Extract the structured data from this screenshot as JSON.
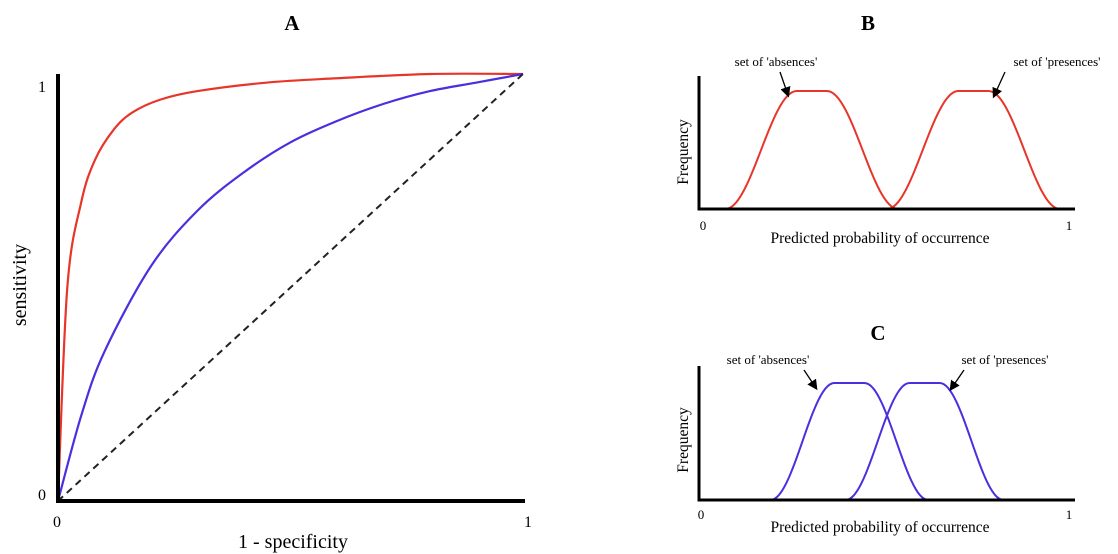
{
  "colors": {
    "red": "#e8352a",
    "blue": "#4a2fe0",
    "axis": "#000000",
    "diagonal": "#222222"
  },
  "chart_data": [
    {
      "panel": "A",
      "type": "line",
      "xlabel": "1 - specificity",
      "ylabel": "sensitivity",
      "xlim": [
        0,
        1
      ],
      "ylim": [
        0,
        1
      ],
      "x_ticks": [
        "0",
        "1"
      ],
      "y_ticks": [
        "0",
        "1"
      ],
      "series": [
        {
          "color": "red",
          "style": "solid",
          "x": [
            0,
            0.02,
            0.05,
            0.08,
            0.12,
            0.16,
            0.22,
            0.3,
            0.45,
            0.6,
            0.8,
            1.0
          ],
          "y": [
            0,
            0.5,
            0.7,
            0.8,
            0.87,
            0.91,
            0.94,
            0.96,
            0.98,
            0.99,
            1.0,
            1.0
          ]
        },
        {
          "color": "blue",
          "style": "solid",
          "x": [
            0,
            0.05,
            0.1,
            0.2,
            0.3,
            0.4,
            0.5,
            0.6,
            0.7,
            0.8,
            0.9,
            1.0
          ],
          "y": [
            0,
            0.2,
            0.35,
            0.55,
            0.68,
            0.77,
            0.84,
            0.89,
            0.93,
            0.96,
            0.98,
            1.0
          ]
        },
        {
          "color": "diagonal",
          "style": "dashed",
          "x": [
            0,
            1
          ],
          "y": [
            0,
            1
          ]
        }
      ]
    },
    {
      "panel": "B",
      "type": "line",
      "xlabel": "Predicted probability of occurrence",
      "ylabel": "Frequency",
      "xlim": [
        0,
        1
      ],
      "ylim": [
        0,
        1
      ],
      "x_ticks": [
        "0",
        "1"
      ],
      "series": [
        {
          "color": "red",
          "peak": 0.3,
          "rise": 0.19,
          "flat": 0.04,
          "start": 0.07,
          "end": 0.56
        },
        {
          "color": "red",
          "peak": 0.73,
          "rise": 0.19,
          "flat": 0.04,
          "start": 0.5,
          "end": 0.97
        }
      ],
      "annotations": [
        "set of 'absences'",
        "set of 'presences'"
      ]
    },
    {
      "panel": "C",
      "type": "line",
      "xlabel": "Predicted probability of occurrence",
      "ylabel": "Frequency",
      "xlim": [
        0,
        1
      ],
      "ylim": [
        0,
        1
      ],
      "x_ticks": [
        "0",
        "1"
      ],
      "series": [
        {
          "color": "blue",
          "peak": 0.4,
          "rise": 0.17,
          "flat": 0.04,
          "start": 0.18,
          "end": 0.64
        },
        {
          "color": "blue",
          "peak": 0.6,
          "rise": 0.17,
          "flat": 0.04,
          "start": 0.37,
          "end": 0.82
        }
      ],
      "annotations": [
        "set of 'absences'",
        "set of 'presences'"
      ]
    }
  ]
}
